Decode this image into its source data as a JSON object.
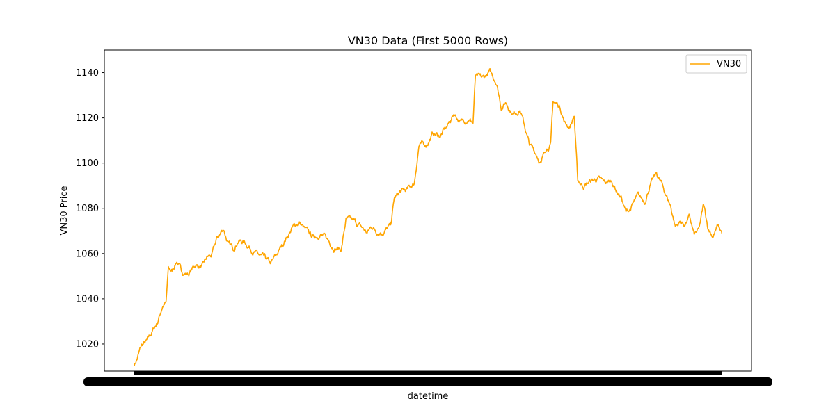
{
  "chart_data": {
    "type": "line",
    "title": "VN30 Data (First 5000 Rows)",
    "xlabel": "datetime",
    "ylabel": "VN30 Price",
    "ylim": [
      1008,
      1150
    ],
    "yticks": [
      1020,
      1040,
      1060,
      1080,
      1100,
      1120,
      1140
    ],
    "grid": false,
    "legend": "top-right",
    "x_tick_labels_note": "x tick labels overlap into an unreadable dense band",
    "series": [
      {
        "name": "VN30",
        "color": "#FFA500",
        "index_range": [
          0,
          4999
        ],
        "anchors": [
          [
            0,
            1011
          ],
          [
            20,
            1013
          ],
          [
            60,
            1019
          ],
          [
            110,
            1021
          ],
          [
            160,
            1026
          ],
          [
            200,
            1030
          ],
          [
            240,
            1037
          ],
          [
            270,
            1038
          ],
          [
            290,
            1053
          ],
          [
            320,
            1052
          ],
          [
            360,
            1057
          ],
          [
            400,
            1052
          ],
          [
            460,
            1051
          ],
          [
            520,
            1055
          ],
          [
            580,
            1054
          ],
          [
            620,
            1058
          ],
          [
            660,
            1059
          ],
          [
            700,
            1066
          ],
          [
            760,
            1071
          ],
          [
            800,
            1064
          ],
          [
            840,
            1062
          ],
          [
            880,
            1066
          ],
          [
            940,
            1065
          ],
          [
            1000,
            1062
          ],
          [
            1060,
            1059
          ],
          [
            1120,
            1057
          ],
          [
            1160,
            1055
          ],
          [
            1220,
            1060
          ],
          [
            1280,
            1066
          ],
          [
            1340,
            1071
          ],
          [
            1400,
            1074
          ],
          [
            1460,
            1070
          ],
          [
            1520,
            1067
          ],
          [
            1580,
            1069
          ],
          [
            1640,
            1066
          ],
          [
            1700,
            1063
          ],
          [
            1760,
            1062
          ],
          [
            1800,
            1075
          ],
          [
            1860,
            1074
          ],
          [
            1920,
            1072
          ],
          [
            1980,
            1069
          ],
          [
            2020,
            1072
          ],
          [
            2060,
            1070
          ],
          [
            2120,
            1070
          ],
          [
            2180,
            1072
          ],
          [
            2210,
            1084
          ],
          [
            2260,
            1087
          ],
          [
            2320,
            1088
          ],
          [
            2380,
            1091
          ],
          [
            2420,
            1108
          ],
          [
            2480,
            1108
          ],
          [
            2540,
            1113
          ],
          [
            2600,
            1112
          ],
          [
            2660,
            1116
          ],
          [
            2720,
            1122
          ],
          [
            2780,
            1118
          ],
          [
            2840,
            1120
          ],
          [
            2880,
            1118
          ],
          [
            2900,
            1138
          ],
          [
            2960,
            1137
          ],
          [
            3020,
            1140
          ],
          [
            3080,
            1136
          ],
          [
            3120,
            1125
          ],
          [
            3160,
            1127
          ],
          [
            3220,
            1122
          ],
          [
            3280,
            1124
          ],
          [
            3320,
            1116
          ],
          [
            3360,
            1108
          ],
          [
            3420,
            1104
          ],
          [
            3460,
            1100
          ],
          [
            3500,
            1107
          ],
          [
            3540,
            1108
          ],
          [
            3560,
            1127
          ],
          [
            3620,
            1125
          ],
          [
            3660,
            1118
          ],
          [
            3700,
            1116
          ],
          [
            3740,
            1121
          ],
          [
            3770,
            1092
          ],
          [
            3820,
            1090
          ],
          [
            3880,
            1092
          ],
          [
            3940,
            1093
          ],
          [
            4000,
            1091
          ],
          [
            4060,
            1092
          ],
          [
            4100,
            1088
          ],
          [
            4140,
            1085
          ],
          [
            4180,
            1078
          ],
          [
            4220,
            1080
          ],
          [
            4280,
            1085
          ],
          [
            4340,
            1083
          ],
          [
            4380,
            1090
          ],
          [
            4440,
            1095
          ],
          [
            4480,
            1091
          ],
          [
            4520,
            1086
          ],
          [
            4560,
            1081
          ],
          [
            4600,
            1072
          ],
          [
            4640,
            1074
          ],
          [
            4680,
            1073
          ],
          [
            4720,
            1076
          ],
          [
            4760,
            1068
          ],
          [
            4800,
            1070
          ],
          [
            4840,
            1081
          ],
          [
            4880,
            1071
          ],
          [
            4920,
            1068
          ],
          [
            4960,
            1072
          ],
          [
            4999,
            1069
          ]
        ]
      }
    ]
  }
}
